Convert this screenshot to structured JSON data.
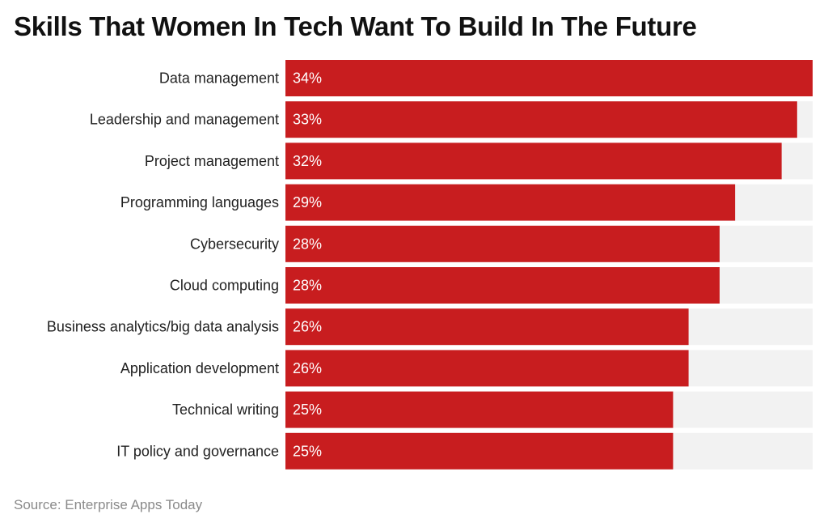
{
  "title": "Skills That Women In Tech Want To Build In The Future",
  "source": "Source: Enterprise Apps Today",
  "colors": {
    "bar": "#c81d1f",
    "track": "#f2f2f2",
    "label": "#222222",
    "value_label": "#ffffff"
  },
  "chart_data": {
    "type": "bar",
    "orientation": "horizontal",
    "title": "Skills That Women In Tech Want To Build In The Future",
    "categories": [
      "Data management",
      "Leadership and management",
      "Project management",
      "Programming languages",
      "Cybersecurity",
      "Cloud computing",
      "Business analytics/big data analysis",
      "Application development",
      "Technical writing",
      "IT policy and governance"
    ],
    "values": [
      34,
      33,
      32,
      29,
      28,
      28,
      26,
      26,
      25,
      25
    ],
    "data_labels": [
      "34%",
      "33%",
      "32%",
      "29%",
      "28%",
      "28%",
      "26%",
      "26%",
      "25%",
      "25%"
    ],
    "unit": "%",
    "xlim": [
      0,
      34
    ],
    "grid": false,
    "legend": "none"
  }
}
